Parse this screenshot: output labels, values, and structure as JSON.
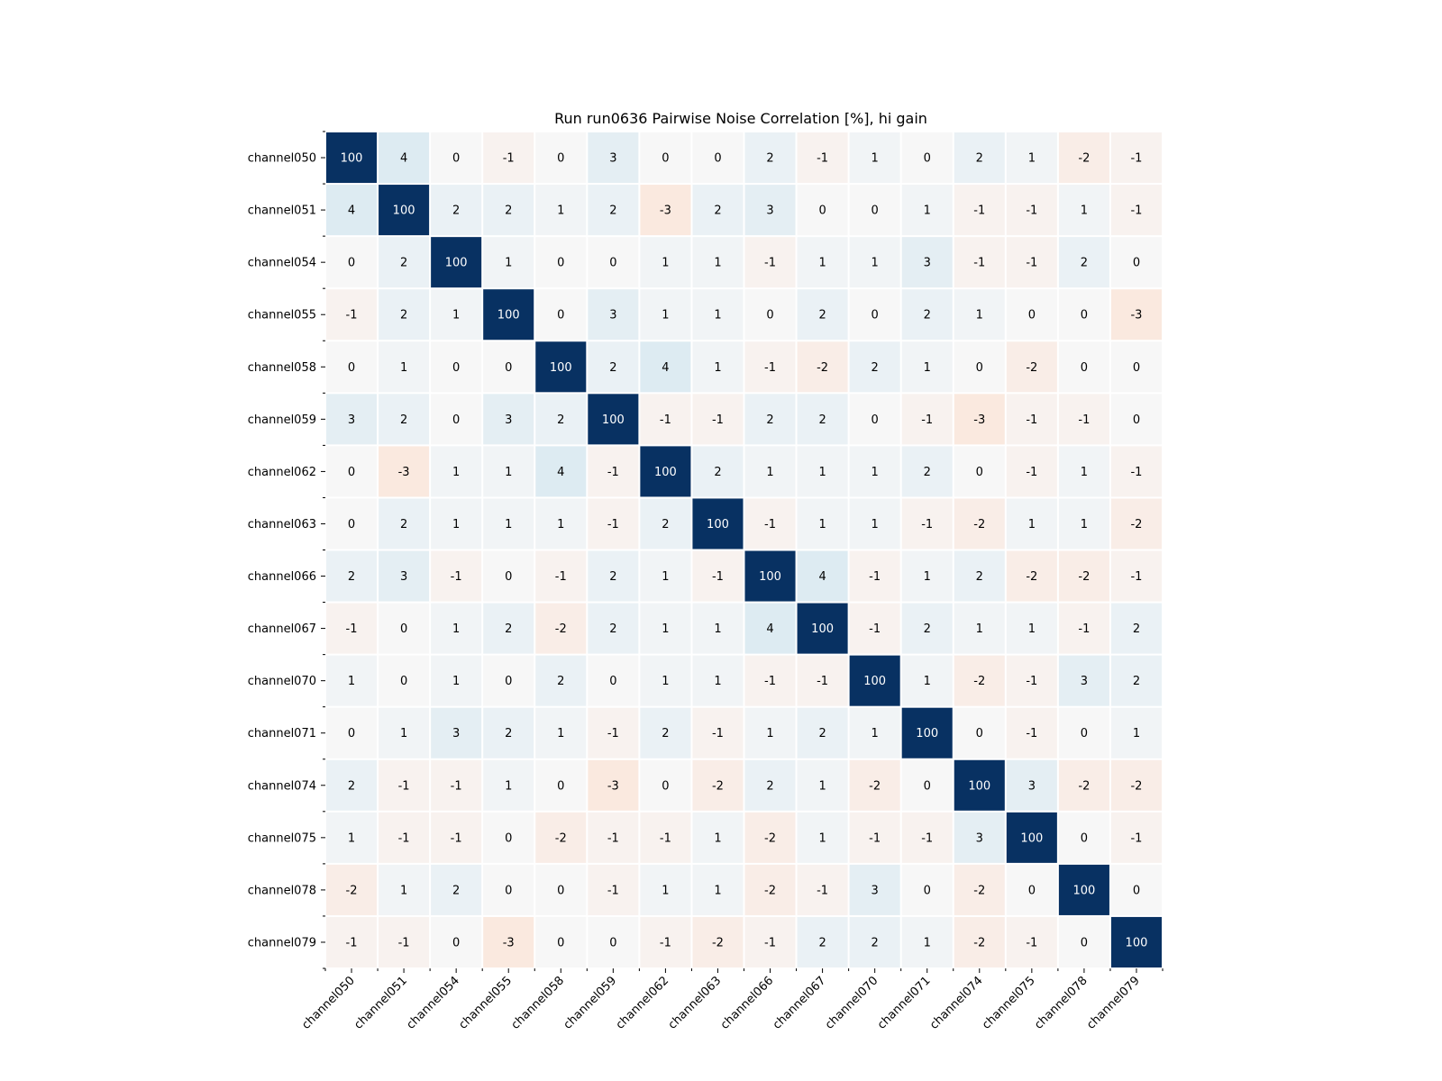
{
  "chart_data": {
    "type": "heatmap",
    "title": "Run run0636 Pairwise Noise Correlation [%], hi gain",
    "xlabel": "",
    "ylabel": "",
    "labels": [
      "channel050",
      "channel051",
      "channel054",
      "channel055",
      "channel058",
      "channel059",
      "channel062",
      "channel063",
      "channel066",
      "channel067",
      "channel070",
      "channel071",
      "channel074",
      "channel075",
      "channel078",
      "channel079"
    ],
    "matrix": [
      [
        100,
        4,
        0,
        -1,
        0,
        3,
        0,
        0,
        2,
        -1,
        1,
        0,
        2,
        1,
        -2,
        -1
      ],
      [
        4,
        100,
        2,
        2,
        1,
        2,
        -3,
        2,
        3,
        0,
        0,
        1,
        -1,
        -1,
        1,
        -1
      ],
      [
        0,
        2,
        100,
        1,
        0,
        0,
        1,
        1,
        -1,
        1,
        1,
        3,
        -1,
        -1,
        2,
        0
      ],
      [
        -1,
        2,
        1,
        100,
        0,
        3,
        1,
        1,
        0,
        2,
        0,
        2,
        1,
        0,
        0,
        -3
      ],
      [
        0,
        1,
        0,
        0,
        100,
        2,
        4,
        1,
        -1,
        -2,
        2,
        1,
        0,
        -2,
        0,
        0
      ],
      [
        3,
        2,
        0,
        3,
        2,
        100,
        -1,
        -1,
        2,
        2,
        0,
        -1,
        -3,
        -1,
        -1,
        0
      ],
      [
        0,
        -3,
        1,
        1,
        4,
        -1,
        100,
        2,
        1,
        1,
        1,
        2,
        0,
        -1,
        1,
        -1
      ],
      [
        0,
        2,
        1,
        1,
        1,
        -1,
        2,
        100,
        -1,
        1,
        1,
        -1,
        -2,
        1,
        1,
        -2
      ],
      [
        2,
        3,
        -1,
        0,
        -1,
        2,
        1,
        -1,
        100,
        4,
        -1,
        1,
        2,
        -2,
        -2,
        -1
      ],
      [
        -1,
        0,
        1,
        2,
        -2,
        2,
        1,
        1,
        4,
        100,
        -1,
        2,
        1,
        1,
        -1,
        2
      ],
      [
        1,
        0,
        1,
        0,
        2,
        0,
        1,
        1,
        -1,
        -1,
        100,
        1,
        -2,
        -1,
        3,
        2
      ],
      [
        0,
        1,
        3,
        2,
        1,
        -1,
        2,
        -1,
        1,
        2,
        1,
        100,
        0,
        -1,
        0,
        1
      ],
      [
        2,
        -1,
        -1,
        1,
        0,
        -3,
        0,
        -2,
        2,
        1,
        -2,
        0,
        100,
        3,
        -2,
        -2
      ],
      [
        1,
        -1,
        -1,
        0,
        -2,
        -1,
        -1,
        1,
        -2,
        1,
        -1,
        -1,
        3,
        100,
        0,
        -1
      ],
      [
        -2,
        1,
        2,
        0,
        0,
        -1,
        1,
        1,
        -2,
        -1,
        3,
        0,
        -2,
        0,
        100,
        0
      ],
      [
        -1,
        -1,
        0,
        -3,
        0,
        0,
        -1,
        -2,
        -1,
        2,
        2,
        1,
        -2,
        -1,
        0,
        100
      ]
    ],
    "colormap": "diverging",
    "colors": {
      "positive": "#053061",
      "negative": "#67001f",
      "neutral": "#f7f7f7",
      "diagonal": "#083162",
      "grid": "#ffffff"
    },
    "legend": "none"
  }
}
